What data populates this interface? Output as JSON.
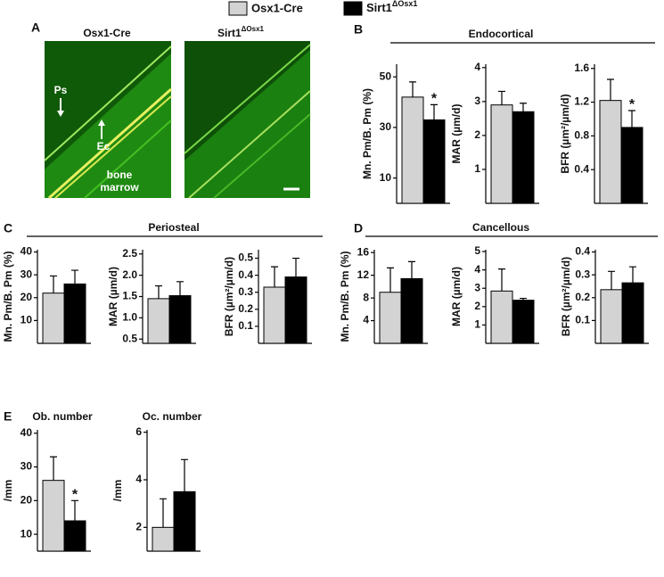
{
  "legend": [
    {
      "name": "Osx1-Cre",
      "color": "#d3d3d3"
    },
    {
      "name": "Sirt1",
      "name_sup": "ΔOsx1",
      "color": "#000000"
    }
  ],
  "panel_labels": [
    "A",
    "B",
    "C",
    "D",
    "E"
  ],
  "panel_a": {
    "left_title": "Osx1-Cre",
    "right_title": "Sirt1",
    "right_title_sup": "ΔOsx1",
    "ps": "Ps",
    "ec": "Ec",
    "bone_marrow": [
      "bone",
      "marrow"
    ]
  },
  "sections": [
    "Endocortical",
    "Periosteal",
    "Cancellous"
  ],
  "chart_data": [
    {
      "type": "bar",
      "ylabel": "Mn. Pm/B. Pm (%)",
      "values": [
        42,
        33
      ],
      "errors": [
        6,
        6
      ],
      "significance": [
        null,
        "*"
      ],
      "ylim": [
        0,
        55
      ],
      "yticks": [
        10,
        30,
        50
      ]
    },
    {
      "type": "bar",
      "ylabel": "MAR (µm/d)",
      "values": [
        2.9,
        2.7
      ],
      "errors": [
        0.4,
        0.25
      ],
      "significance": [
        null,
        null
      ],
      "ylim": [
        0,
        4.1
      ],
      "yticks": [
        1,
        2,
        3,
        4
      ]
    },
    {
      "type": "bar",
      "ylabel": "BFR (µm²/µm/d)",
      "values": [
        1.22,
        0.9
      ],
      "errors": [
        0.25,
        0.2
      ],
      "significance": [
        null,
        "*"
      ],
      "ylim": [
        0,
        1.65
      ],
      "yticks": [
        0.4,
        0.8,
        1.2,
        1.6
      ]
    },
    {
      "type": "bar",
      "ylabel": "Mn. Pm/B. Pm (%)",
      "values": [
        22,
        26
      ],
      "errors": [
        7.5,
        6
      ],
      "significance": [
        null,
        null
      ],
      "ylim": [
        0,
        41
      ],
      "yticks": [
        10,
        20,
        30,
        40
      ]
    },
    {
      "type": "bar",
      "ylabel": "MAR (µm/d)",
      "values": [
        1.45,
        1.52
      ],
      "errors": [
        0.3,
        0.33
      ],
      "significance": [
        null,
        null
      ],
      "ylim": [
        0.4,
        2.6
      ],
      "yticks": [
        0.5,
        {
          "value": 1,
          "label": "1.0"
        },
        1.5,
        {
          "value": 2,
          "label": "2.0"
        },
        2.5
      ]
    },
    {
      "type": "bar",
      "ylabel": "BFR (µm²/µm/d)",
      "values": [
        0.33,
        0.39
      ],
      "errors": [
        0.12,
        0.11
      ],
      "significance": [
        null,
        null
      ],
      "ylim": [
        0,
        0.55
      ],
      "yticks": [
        0.1,
        0.2,
        0.3,
        0.4,
        0.5
      ]
    },
    {
      "type": "bar",
      "ylabel": "Mn. Pm/B. Pm (%)",
      "values": [
        9,
        11.4
      ],
      "errors": [
        4.3,
        3
      ],
      "significance": [
        null,
        null
      ],
      "ylim": [
        0,
        16.5
      ],
      "yticks": [
        4,
        8,
        12,
        16
      ]
    },
    {
      "type": "bar",
      "ylabel": "MAR (µm/d)",
      "values": [
        2.85,
        2.35
      ],
      "errors": [
        1.2,
        0.1
      ],
      "significance": [
        null,
        null
      ],
      "ylim": [
        0,
        5.1
      ],
      "yticks": [
        1,
        2,
        3,
        4,
        5
      ]
    },
    {
      "type": "bar",
      "ylabel": "BFR (µm²/µm/d)",
      "values": [
        0.235,
        0.265
      ],
      "errors": [
        0.08,
        0.07
      ],
      "significance": [
        null,
        null
      ],
      "ylim": [
        0,
        0.41
      ],
      "yticks": [
        0.1,
        0.2,
        0.3,
        0.4
      ]
    },
    {
      "type": "bar",
      "title": "Ob. number",
      "ylabel": "/mm",
      "values": [
        26,
        14
      ],
      "errors": [
        7,
        6
      ],
      "significance": [
        null,
        "*"
      ],
      "ylim": [
        5,
        41
      ],
      "yticks": [
        10,
        20,
        30,
        40
      ]
    },
    {
      "type": "bar",
      "title": "Oc. number",
      "ylabel": "/mm",
      "values": [
        2,
        3.5
      ],
      "errors": [
        1.2,
        1.35
      ],
      "significance": [
        null,
        null
      ],
      "ylim": [
        1,
        6.1
      ],
      "yticks": [
        2,
        4,
        6
      ]
    }
  ]
}
